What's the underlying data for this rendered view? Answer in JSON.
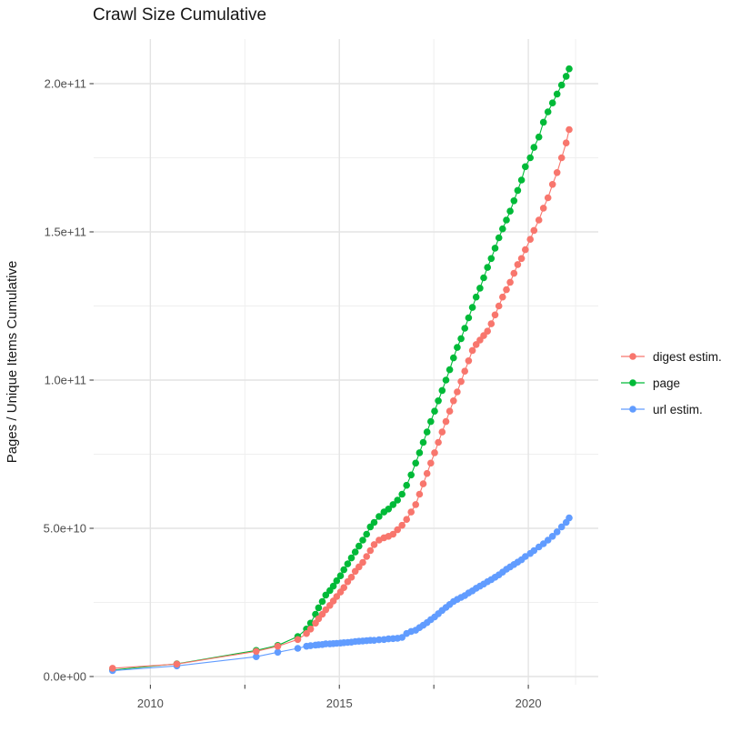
{
  "title": "Crawl Size Cumulative",
  "chart_data": {
    "type": "line",
    "title": "Crawl Size Cumulative",
    "xlabel": "",
    "ylabel": "Pages / Unique Items Cumulative",
    "legend_position": "right",
    "grid": true,
    "background": "#ffffff",
    "grid_major_color": "#e3e3e3",
    "grid_minor_color": "#efefef",
    "tick_color": "#333333",
    "tick_label_color": "#4d4d4d",
    "xlim": [
      2008.5,
      2021.85
    ],
    "ylim_e9": [
      0,
      215
    ],
    "x_ticks": {
      "major": [
        2010,
        2015,
        2020
      ],
      "labels": [
        "2010",
        "2015",
        "2020"
      ],
      "minor": [
        2012.5,
        2017.5,
        2021.25
      ],
      "tick_marks": [
        2010,
        2012.5,
        2015,
        2017.5,
        2020
      ]
    },
    "y_ticks": {
      "values_e9": [
        0,
        50,
        100,
        150,
        200
      ],
      "labels": [
        "0.0e+00",
        "5.0e+10",
        "1.0e+11",
        "1.5e+11",
        "2.0e+11"
      ],
      "minor_e9": [
        25,
        75,
        125,
        175
      ]
    },
    "x_years": [
      2009.0,
      2010.7,
      2012.8,
      2013.37,
      2013.9,
      2014.13,
      2014.24,
      2014.37,
      2014.45,
      2014.55,
      2014.64,
      2014.75,
      2014.84,
      2014.93,
      2015.03,
      2015.12,
      2015.22,
      2015.32,
      2015.42,
      2015.52,
      2015.62,
      2015.72,
      2015.82,
      2015.92,
      2016.05,
      2016.18,
      2016.3,
      2016.42,
      2016.54,
      2016.66,
      2016.78,
      2016.9,
      2017.02,
      2017.12,
      2017.22,
      2017.32,
      2017.42,
      2017.52,
      2017.62,
      2017.72,
      2017.82,
      2017.92,
      2018.02,
      2018.12,
      2018.22,
      2018.32,
      2018.42,
      2018.52,
      2018.62,
      2018.72,
      2018.82,
      2018.92,
      2019.02,
      2019.12,
      2019.22,
      2019.32,
      2019.42,
      2019.52,
      2019.62,
      2019.72,
      2019.82,
      2019.92,
      2020.05,
      2020.15,
      2020.28,
      2020.4,
      2020.52,
      2020.64,
      2020.76,
      2020.88,
      2021.0,
      2021.08
    ],
    "series": [
      {
        "name": "digest estim.",
        "color": "#F8766D",
        "values_e9": [
          2.8,
          4.2,
          8.5,
          10.2,
          12.5,
          14.5,
          16,
          18,
          19.5,
          21,
          22.5,
          24,
          25.5,
          27,
          28.5,
          30,
          32,
          33.5,
          35.5,
          37,
          38.5,
          40.5,
          42.5,
          44.5,
          46,
          46.8,
          47.3,
          48,
          49.5,
          51,
          53,
          55.5,
          58,
          61.5,
          65,
          68.5,
          72,
          75.5,
          79,
          82.5,
          86,
          89.5,
          93,
          96,
          99.5,
          103,
          106.5,
          110,
          112,
          113.5,
          115,
          116.5,
          119,
          122,
          125,
          128,
          130.5,
          133,
          136,
          139,
          141,
          144,
          147.5,
          150.5,
          154,
          158,
          161.5,
          166,
          170,
          175,
          180,
          184.5
        ]
      },
      {
        "name": "page",
        "color": "#00BA38",
        "values_e9": [
          2.2,
          4.3,
          8.8,
          10.5,
          13.5,
          16,
          18,
          21,
          23.2,
          25.3,
          27.5,
          29,
          30.5,
          32.3,
          34,
          36,
          38,
          40,
          42,
          44,
          46,
          48,
          50.5,
          52,
          54,
          55.5,
          56.5,
          58,
          59.5,
          61.5,
          64.5,
          68,
          72,
          75.5,
          79,
          82.5,
          86,
          89.5,
          93,
          96.5,
          100,
          103.5,
          107.5,
          111,
          114,
          117.5,
          121,
          124.5,
          128,
          131,
          134.5,
          138,
          141,
          144.5,
          148,
          151,
          154,
          157,
          160.5,
          164,
          167.5,
          172,
          175,
          178.5,
          182,
          187,
          190.5,
          193.5,
          196.5,
          199.5,
          202.5,
          205
        ]
      },
      {
        "name": "url estim.",
        "color": "#619CFF",
        "values_e9": [
          2.0,
          3.6,
          6.7,
          8.2,
          9.5,
          10.2,
          10.4,
          10.6,
          10.7,
          10.8,
          11,
          11,
          11.1,
          11.2,
          11.3,
          11.4,
          11.5,
          11.6,
          11.8,
          11.9,
          12,
          12.1,
          12.2,
          12.2,
          12.4,
          12.5,
          12.7,
          12.8,
          12.9,
          13.2,
          14.5,
          15.2,
          15.6,
          16.5,
          17.3,
          18.2,
          19.2,
          20.1,
          21.2,
          22.3,
          23.3,
          24.3,
          25.3,
          26,
          26.7,
          27.3,
          28.2,
          28.9,
          29.8,
          30.5,
          31.2,
          32,
          32.7,
          33.5,
          34.3,
          35.2,
          36.2,
          37,
          37.8,
          38.6,
          39.4,
          40.5,
          41.5,
          42.5,
          43.7,
          44.8,
          46,
          47.3,
          48.8,
          50.5,
          52,
          53.5
        ]
      }
    ]
  }
}
